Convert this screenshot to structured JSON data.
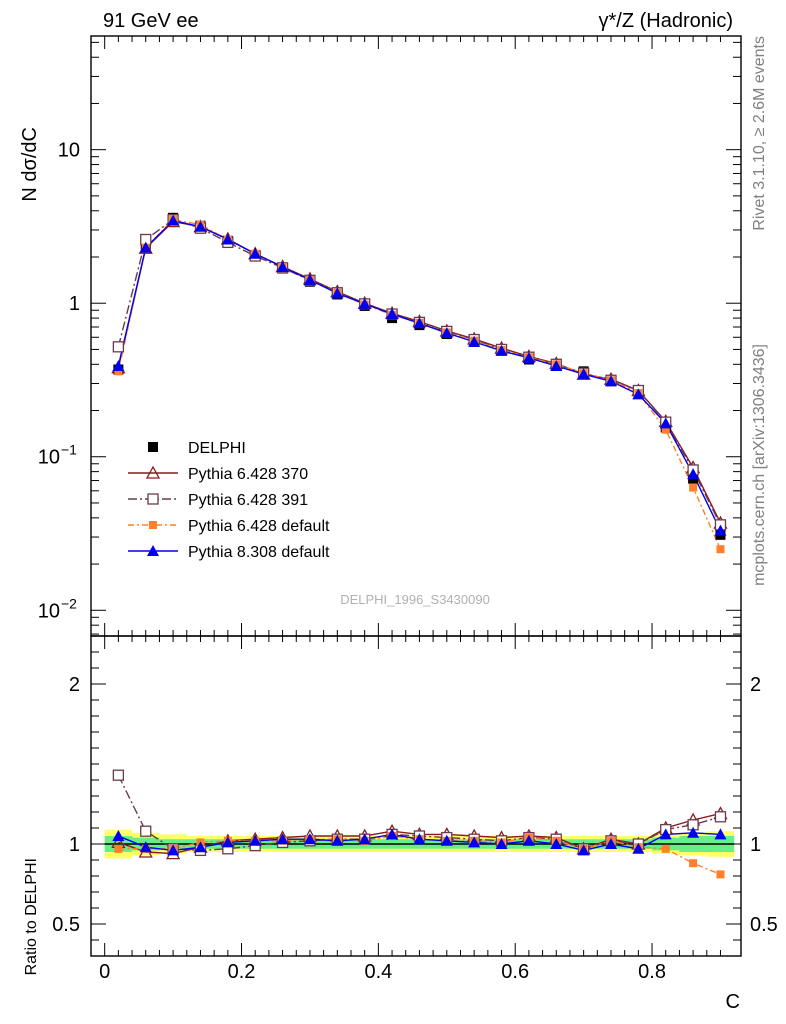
{
  "header": {
    "left": "91 GeV ee",
    "right": "γ*/Z (Hadronic)"
  },
  "side_labels": {
    "rivet": "Rivet 3.1.10, ≥ 2.6M events",
    "mcplots": "mcplots.cern.ch [arXiv:1306.3436]"
  },
  "watermark": "DELPHI_1996_S3430090",
  "colors": {
    "data": "#000000",
    "p6_370": "#8b1a1a",
    "p6_391": "#6b3a4e",
    "p6_default": "#ff7f2a",
    "p8_default": "#0000ee",
    "band_inner": "#66ee88",
    "band_outer": "#ffff66"
  },
  "chart_data": [
    {
      "type": "line",
      "panel": "main",
      "ylabel": "N dσ/dC",
      "yscale": "log",
      "xlim": [
        -0.02,
        0.93
      ],
      "ylim": [
        0.0068,
        55
      ],
      "yticks": [
        {
          "value": 10,
          "label": "10"
        },
        {
          "value": 1,
          "label": "1"
        },
        {
          "value": 0.1,
          "label": "10",
          "sup": "−1"
        },
        {
          "value": 0.01,
          "label": "10",
          "sup": "−2"
        }
      ],
      "x": [
        0.02,
        0.06,
        0.1,
        0.14,
        0.18,
        0.22,
        0.26,
        0.3,
        0.34,
        0.38,
        0.42,
        0.46,
        0.5,
        0.54,
        0.58,
        0.62,
        0.66,
        0.7,
        0.74,
        0.78,
        0.82,
        0.86,
        0.9
      ],
      "legend_position": "lower-left",
      "series": [
        {
          "name": "DELPHI",
          "key": "data",
          "marker": "square",
          "values": [
            0.37,
            2.4,
            3.6,
            3.2,
            2.55,
            2.05,
            1.68,
            1.38,
            1.14,
            0.96,
            0.8,
            0.72,
            0.63,
            0.56,
            0.49,
            0.43,
            0.39,
            0.36,
            0.31,
            0.265,
            0.155,
            0.072,
            0.031
          ]
        },
        {
          "name": "Pythia 6.428 370",
          "key": "p6_370",
          "marker": "triangle-open",
          "dash": "",
          "values": [
            0.38,
            2.28,
            3.4,
            3.15,
            2.62,
            2.1,
            1.73,
            1.44,
            1.19,
            1.0,
            0.86,
            0.76,
            0.66,
            0.585,
            0.51,
            0.45,
            0.405,
            0.345,
            0.32,
            0.27,
            0.17,
            0.085,
            0.037
          ]
        },
        {
          "name": "Pythia 6.428 391",
          "key": "p6_391",
          "marker": "square-open",
          "dash": "9,3,2,3",
          "values": [
            0.52,
            2.6,
            3.5,
            3.08,
            2.49,
            2.03,
            1.7,
            1.41,
            1.17,
            0.99,
            0.85,
            0.75,
            0.655,
            0.58,
            0.5,
            0.445,
            0.4,
            0.35,
            0.315,
            0.27,
            0.168,
            0.082,
            0.036
          ]
        },
        {
          "name": "Pythia 6.428 default",
          "key": "p6_default",
          "marker": "square-small",
          "dash": "6,3,2,3",
          "values": [
            0.36,
            2.3,
            3.5,
            3.25,
            2.6,
            2.1,
            1.72,
            1.42,
            1.17,
            0.98,
            0.84,
            0.745,
            0.645,
            0.57,
            0.495,
            0.445,
            0.4,
            0.35,
            0.315,
            0.26,
            0.15,
            0.063,
            0.025
          ]
        },
        {
          "name": "Pythia 8.308 default",
          "key": "p8_default",
          "marker": "triangle",
          "dash": "",
          "values": [
            0.39,
            2.3,
            3.45,
            3.15,
            2.6,
            2.1,
            1.72,
            1.42,
            1.16,
            0.99,
            0.85,
            0.74,
            0.64,
            0.56,
            0.49,
            0.44,
            0.39,
            0.345,
            0.31,
            0.255,
            0.165,
            0.077,
            0.033
          ]
        }
      ]
    },
    {
      "type": "line",
      "panel": "ratio",
      "xlabel": "C",
      "ylabel": "Ratio to DELPHI",
      "xlim": [
        -0.02,
        0.93
      ],
      "ylim": [
        0.3,
        2.3
      ],
      "xticks": [
        0,
        0.2,
        0.4,
        0.6,
        0.8
      ],
      "xtick_labels": [
        "0",
        "0.2",
        "0.4",
        "0.6",
        "0.8"
      ],
      "yticks": [
        0.5,
        1,
        2
      ],
      "ytick_labels": [
        "0.5",
        "1",
        "2"
      ],
      "x": [
        0.02,
        0.06,
        0.1,
        0.14,
        0.18,
        0.22,
        0.26,
        0.3,
        0.34,
        0.38,
        0.42,
        0.46,
        0.5,
        0.54,
        0.58,
        0.62,
        0.66,
        0.7,
        0.74,
        0.78,
        0.82,
        0.86,
        0.9
      ],
      "band_inner": [
        0.05,
        0.04,
        0.03,
        0.03,
        0.03,
        0.03,
        0.03,
        0.03,
        0.03,
        0.03,
        0.03,
        0.03,
        0.03,
        0.03,
        0.03,
        0.03,
        0.03,
        0.03,
        0.03,
        0.03,
        0.04,
        0.05,
        0.05
      ],
      "band_outer": [
        0.09,
        0.07,
        0.06,
        0.05,
        0.05,
        0.05,
        0.05,
        0.05,
        0.05,
        0.05,
        0.05,
        0.05,
        0.05,
        0.05,
        0.05,
        0.05,
        0.05,
        0.05,
        0.05,
        0.05,
        0.06,
        0.07,
        0.08
      ],
      "series": [
        {
          "name": "Pythia 6.428 370",
          "key": "p6_370",
          "marker": "triangle-open",
          "dash": "",
          "values": [
            1.01,
            0.95,
            0.94,
            0.98,
            1.02,
            1.03,
            1.04,
            1.05,
            1.05,
            1.05,
            1.08,
            1.06,
            1.06,
            1.05,
            1.04,
            1.05,
            1.04,
            0.97,
            1.03,
            1.0,
            1.1,
            1.15,
            1.19
          ]
        },
        {
          "name": "Pythia 6.428 391",
          "key": "p6_391",
          "marker": "square-open",
          "dash": "9,3,2,3",
          "values": [
            1.43,
            1.08,
            0.97,
            0.96,
            0.97,
            0.99,
            1.01,
            1.02,
            1.03,
            1.03,
            1.06,
            1.05,
            1.04,
            1.03,
            1.02,
            1.04,
            1.03,
            0.97,
            1.02,
            1.0,
            1.09,
            1.12,
            1.17
          ]
        },
        {
          "name": "Pythia 6.428 default",
          "key": "p6_default",
          "marker": "square-small",
          "dash": "6,3,2,3",
          "values": [
            0.97,
            0.97,
            0.97,
            1.01,
            1.02,
            1.02,
            1.02,
            1.03,
            1.03,
            1.02,
            1.05,
            1.03,
            1.02,
            1.02,
            1.01,
            1.04,
            1.02,
            0.97,
            1.02,
            0.98,
            0.97,
            0.88,
            0.81
          ]
        },
        {
          "name": "Pythia 8.308 default",
          "key": "p8_default",
          "marker": "triangle",
          "dash": "",
          "values": [
            1.05,
            0.98,
            0.96,
            0.98,
            1.01,
            1.02,
            1.03,
            1.03,
            1.02,
            1.03,
            1.06,
            1.03,
            1.02,
            1.01,
            1.0,
            1.02,
            1.0,
            0.96,
            1.0,
            0.97,
            1.06,
            1.07,
            1.06
          ]
        }
      ]
    }
  ]
}
